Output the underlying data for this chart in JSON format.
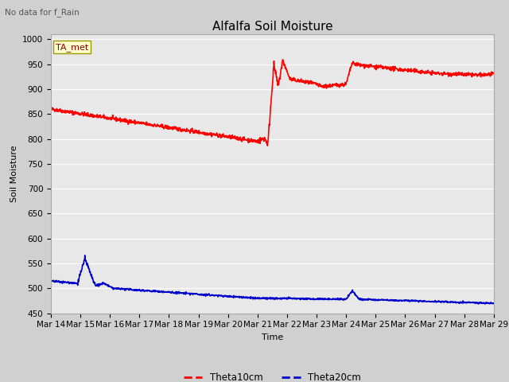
{
  "title": "Alfalfa Soil Moisture",
  "xlabel": "Time",
  "ylabel": "Soil Moisture",
  "top_left_text": "No data for f_Rain",
  "legend_label_box": "TA_met",
  "ylim": [
    450,
    1010
  ],
  "yticks": [
    450,
    500,
    550,
    600,
    650,
    700,
    750,
    800,
    850,
    900,
    950,
    1000
  ],
  "xtick_labels": [
    "Mar 14",
    "Mar 15",
    "Mar 16",
    "Mar 17",
    "Mar 18",
    "Mar 19",
    "Mar 20",
    "Mar 21",
    "Mar 22",
    "Mar 23",
    "Mar 24",
    "Mar 25",
    "Mar 26",
    "Mar 27",
    "Mar 28",
    "Mar 29"
  ],
  "series": {
    "theta10cm": {
      "color": "#ff0000",
      "label": "Theta10cm",
      "linewidth": 1.2
    },
    "theta20cm": {
      "color": "#0000cc",
      "label": "Theta20cm",
      "linewidth": 1.2
    }
  },
  "plot_bg_color": "#e8e8e8",
  "fig_bg_color": "#d0d0d0",
  "grid_color": "#ffffff",
  "title_fontsize": 11,
  "axis_label_fontsize": 8,
  "tick_fontsize": 7.5
}
